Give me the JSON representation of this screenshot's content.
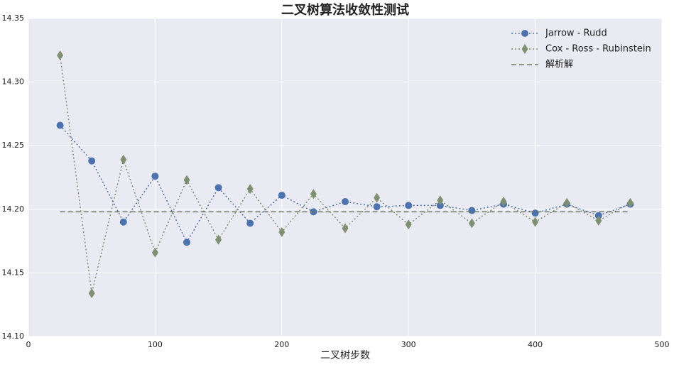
{
  "chart_data": {
    "type": "line",
    "title": "二叉树算法收敛性测试",
    "x_label": "二叉树步数",
    "x": [
      25,
      50,
      75,
      100,
      125,
      150,
      175,
      200,
      225,
      250,
      275,
      300,
      325,
      350,
      375,
      400,
      425,
      450,
      475
    ],
    "series": [
      {
        "name": "Jarrow - Rudd",
        "color": "#4c72b0",
        "marker": "circle",
        "linestyle": "dotted",
        "values": [
          14.266,
          14.238,
          14.19,
          14.226,
          14.174,
          14.217,
          14.189,
          14.211,
          14.198,
          14.206,
          14.202,
          14.203,
          14.203,
          14.199,
          14.204,
          14.197,
          14.204,
          14.195,
          14.204
        ]
      },
      {
        "name": "Cox - Ross - Rubinstein",
        "color": "#7f9070",
        "marker": "diamond",
        "linestyle": "dotted",
        "values": [
          14.321,
          14.134,
          14.239,
          14.166,
          14.223,
          14.176,
          14.216,
          14.182,
          14.212,
          14.185,
          14.209,
          14.188,
          14.207,
          14.189,
          14.206,
          14.19,
          14.205,
          14.191,
          14.205
        ]
      },
      {
        "name": "解析解",
        "color": "#6b7660",
        "marker": "none",
        "linestyle": "dashed",
        "values": [
          14.198,
          14.198,
          14.198,
          14.198,
          14.198,
          14.198,
          14.198,
          14.198,
          14.198,
          14.198,
          14.198,
          14.198,
          14.198,
          14.198,
          14.198,
          14.198,
          14.198,
          14.198,
          14.198
        ]
      }
    ],
    "xlim": [
      0,
      500
    ],
    "xticks": [
      0,
      100,
      200,
      300,
      400,
      500
    ],
    "ylim": [
      14.1,
      14.35
    ],
    "yticks": [
      {
        "value": 14.1,
        "label": "14.10"
      },
      14.15,
      {
        "value": 14.2,
        "label": "14.20"
      },
      14.25,
      {
        "value": 14.3,
        "label": "14.30"
      },
      14.35
    ],
    "grid": true,
    "legend": "upper right"
  }
}
